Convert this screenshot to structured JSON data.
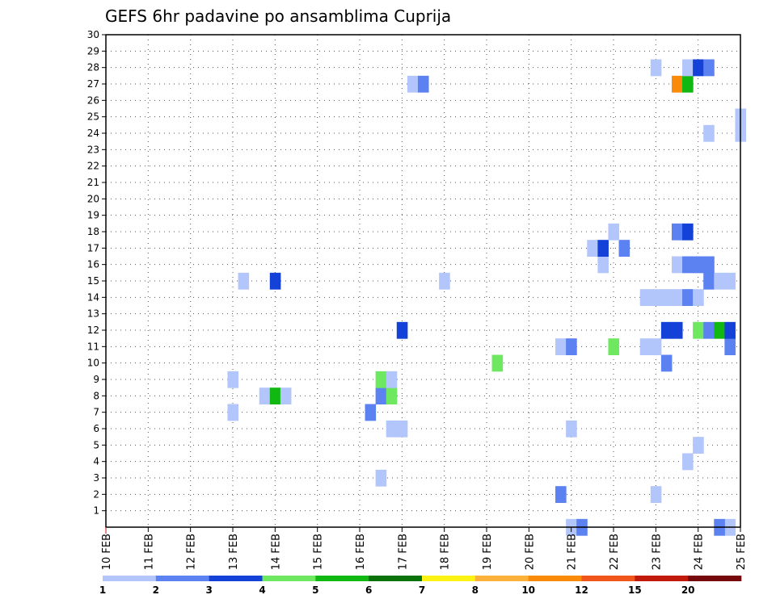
{
  "chart_data": {
    "type": "heatmap",
    "title": "GEFS 6hr padavine po ansamblima Cuprija",
    "x_tick_labels": [
      "10 FEB",
      "11 FEB",
      "12 FEB",
      "13 FEB",
      "14 FEB",
      "15 FEB",
      "16 FEB",
      "17 FEB",
      "18 FEB",
      "19 FEB",
      "20 FEB",
      "21 FEB",
      "22 FEB",
      "23 FEB",
      "24 FEB",
      "25 FEB"
    ],
    "y_tick_labels": [
      "1",
      "2",
      "3",
      "4",
      "5",
      "6",
      "7",
      "8",
      "9",
      "10",
      "11",
      "12",
      "13",
      "14",
      "15",
      "16",
      "17",
      "18",
      "19",
      "20",
      "21",
      "22",
      "23",
      "24",
      "25",
      "26",
      "27",
      "28",
      "29",
      "30"
    ],
    "xlim": [
      0,
      60
    ],
    "ylim": [
      0,
      30
    ],
    "grid": true,
    "colorbar": {
      "position": "bottom",
      "labels": [
        "1",
        "2",
        "3",
        "4",
        "5",
        "6",
        "7",
        "8",
        "10",
        "12",
        "15",
        "20"
      ],
      "colors": [
        "#b3c6fb",
        "#5b82f0",
        "#1442d8",
        "#6ee860",
        "#12b812",
        "#0a720a",
        "#fcf214",
        "#fcb23a",
        "#fa8a0a",
        "#f0561a",
        "#c21a0a",
        "#74080a"
      ]
    },
    "cells": [
      {
        "x": 59,
        "y": 0,
        "level": 1
      },
      {
        "x": 58,
        "y": 0,
        "level": 2
      },
      {
        "x": 44,
        "y": 0,
        "level": 1
      },
      {
        "x": 45,
        "y": 0,
        "level": 2
      },
      {
        "x": 43,
        "y": 2,
        "level": 2
      },
      {
        "x": 52,
        "y": 2,
        "level": 1
      },
      {
        "x": 26,
        "y": 3,
        "level": 1
      },
      {
        "x": 55,
        "y": 4,
        "level": 1
      },
      {
        "x": 56,
        "y": 5,
        "level": 1
      },
      {
        "x": 28,
        "y": 6,
        "level": 1
      },
      {
        "x": 27,
        "y": 6,
        "level": 1
      },
      {
        "x": 44,
        "y": 6,
        "level": 1
      },
      {
        "x": 12,
        "y": 7,
        "level": 1
      },
      {
        "x": 25,
        "y": 7,
        "level": 2
      },
      {
        "x": 15,
        "y": 8,
        "level": 1
      },
      {
        "x": 16,
        "y": 8,
        "level": 5
      },
      {
        "x": 17,
        "y": 8,
        "level": 1
      },
      {
        "x": 26,
        "y": 8,
        "level": 2
      },
      {
        "x": 27,
        "y": 8,
        "level": 4
      },
      {
        "x": 12,
        "y": 9,
        "level": 1
      },
      {
        "x": 26,
        "y": 9,
        "level": 4
      },
      {
        "x": 27,
        "y": 9,
        "level": 1
      },
      {
        "x": 37,
        "y": 10,
        "level": 4
      },
      {
        "x": 53,
        "y": 10,
        "level": 2
      },
      {
        "x": 43,
        "y": 11,
        "level": 1
      },
      {
        "x": 44,
        "y": 11,
        "level": 2
      },
      {
        "x": 48,
        "y": 11,
        "level": 4
      },
      {
        "x": 51,
        "y": 11,
        "level": 1
      },
      {
        "x": 52,
        "y": 11,
        "level": 1
      },
      {
        "x": 59,
        "y": 11,
        "level": 2
      },
      {
        "x": 28,
        "y": 12,
        "level": 3
      },
      {
        "x": 53,
        "y": 12,
        "level": 3
      },
      {
        "x": 54,
        "y": 12,
        "level": 3
      },
      {
        "x": 56,
        "y": 12,
        "level": 4
      },
      {
        "x": 57,
        "y": 12,
        "level": 2
      },
      {
        "x": 58,
        "y": 12,
        "level": 5
      },
      {
        "x": 59,
        "y": 12,
        "level": 3
      },
      {
        "x": 51,
        "y": 14,
        "level": 1
      },
      {
        "x": 52,
        "y": 14,
        "level": 1
      },
      {
        "x": 53,
        "y": 14,
        "level": 1
      },
      {
        "x": 54,
        "y": 14,
        "level": 1
      },
      {
        "x": 55,
        "y": 14,
        "level": 2
      },
      {
        "x": 56,
        "y": 14,
        "level": 1
      },
      {
        "x": 13,
        "y": 15,
        "level": 1
      },
      {
        "x": 16,
        "y": 15,
        "level": 3
      },
      {
        "x": 32,
        "y": 15,
        "level": 1
      },
      {
        "x": 57,
        "y": 15,
        "level": 2
      },
      {
        "x": 58,
        "y": 15,
        "level": 1
      },
      {
        "x": 59,
        "y": 15,
        "level": 1
      },
      {
        "x": 47,
        "y": 16,
        "level": 1
      },
      {
        "x": 54,
        "y": 16,
        "level": 1
      },
      {
        "x": 55,
        "y": 16,
        "level": 2
      },
      {
        "x": 56,
        "y": 16,
        "level": 2
      },
      {
        "x": 57,
        "y": 16,
        "level": 2
      },
      {
        "x": 46,
        "y": 17,
        "level": 1
      },
      {
        "x": 47,
        "y": 17,
        "level": 3
      },
      {
        "x": 49,
        "y": 17,
        "level": 2
      },
      {
        "x": 48,
        "y": 18,
        "level": 1
      },
      {
        "x": 54,
        "y": 18,
        "level": 2
      },
      {
        "x": 55,
        "y": 18,
        "level": 3
      },
      {
        "x": 57,
        "y": 24,
        "level": 1
      },
      {
        "x": 60,
        "y": 24,
        "level": 1
      },
      {
        "x": 60,
        "y": 25,
        "level": 1
      },
      {
        "x": 29,
        "y": 27,
        "level": 1
      },
      {
        "x": 30,
        "y": 27,
        "level": 2
      },
      {
        "x": 54,
        "y": 27,
        "level": 9
      },
      {
        "x": 55,
        "y": 27,
        "level": 5
      },
      {
        "x": 52,
        "y": 28,
        "level": 1
      },
      {
        "x": 55,
        "y": 28,
        "level": 1
      },
      {
        "x": 56,
        "y": 28,
        "level": 3
      },
      {
        "x": 57,
        "y": 28,
        "level": 2
      }
    ]
  }
}
